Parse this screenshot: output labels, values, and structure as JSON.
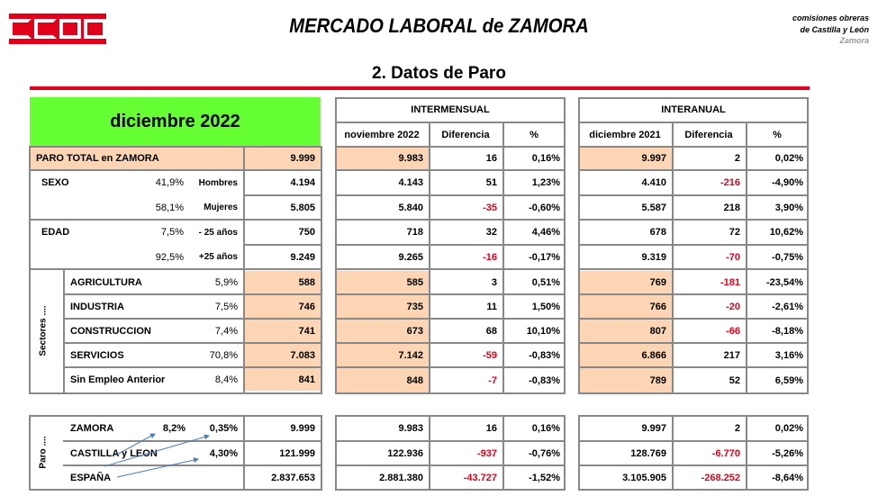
{
  "header": {
    "logo": "CCOO",
    "title": "MERCADO LABORAL de ZAMORA",
    "org_line1": "comisiones obreras",
    "org_line2": "de Castilla y León",
    "org_line3": "Zamora",
    "section": "2.   Datos de Paro"
  },
  "left": {
    "month": "diciembre 2022",
    "paro_label": "PARO TOTAL en ZAMORA",
    "paro_value": "9.999",
    "sexo_label": "SEXO",
    "hombres_pct": "41,9%",
    "hombres_label": "Hombres",
    "hombres_value": "4.194",
    "mujeres_pct": "58,1%",
    "mujeres_label": "Mujeres",
    "mujeres_value": "5.805",
    "edad_label": "EDAD",
    "menos25_pct": "7,5%",
    "menos25_label": "- 25 años",
    "menos25_value": "750",
    "mas25_pct": "92,5%",
    "mas25_label": "+25 años",
    "mas25_value": "9.249",
    "sectores_label": "Sectores ....",
    "sectors": [
      {
        "label": "AGRICULTURA",
        "pct": "5,9%",
        "value": "588"
      },
      {
        "label": "INDUSTRIA",
        "pct": "7,5%",
        "value": "746"
      },
      {
        "label": "CONSTRUCCION",
        "pct": "7,4%",
        "value": "741"
      },
      {
        "label": "SERVICIOS",
        "pct": "70,8%",
        "value": "7.083"
      },
      {
        "label": "Sin Empleo Anterior",
        "pct": "8,4%",
        "value": "841"
      }
    ],
    "paro_group_label": "Paro ....",
    "zamora_label": "ZAMORA",
    "zamora_pct1": "8,2%",
    "zamora_pct2": "0,35%",
    "zamora_value": "9.999",
    "cyl_label": "CASTILLA y LEON",
    "cyl_pct": "4,30%",
    "cyl_value": "121.999",
    "esp_label": "ESPAÑA",
    "esp_value": "2.837.653"
  },
  "intermensual": {
    "title": "INTERMENSUAL",
    "h1": "noviembre 2022",
    "h2": "Diferencia",
    "h3": "%",
    "rows": [
      [
        "9.983",
        "16",
        "0,16%"
      ],
      [
        "4.143",
        "51",
        "1,23%"
      ],
      [
        "5.840",
        "-35",
        "-0,60%"
      ],
      [
        "718",
        "32",
        "4,46%"
      ],
      [
        "9.265",
        "-16",
        "-0,17%"
      ],
      [
        "585",
        "3",
        "0,51%"
      ],
      [
        "735",
        "11",
        "1,50%"
      ],
      [
        "673",
        "68",
        "10,10%"
      ],
      [
        "7.142",
        "-59",
        "-0,83%"
      ],
      [
        "848",
        "-7",
        "-0,83%"
      ]
    ],
    "bottom": [
      [
        "9.983",
        "16",
        "0,16%"
      ],
      [
        "122.936",
        "-937",
        "-0,76%"
      ],
      [
        "2.881.380",
        "-43.727",
        "-1,52%"
      ]
    ]
  },
  "interanual": {
    "title": "INTERANUAL",
    "h1": "diciembre 2021",
    "h2": "Diferencia",
    "h3": "%",
    "rows": [
      [
        "9.997",
        "2",
        "0,02%"
      ],
      [
        "4.410",
        "-216",
        "-4,90%"
      ],
      [
        "5.587",
        "218",
        "3,90%"
      ],
      [
        "678",
        "72",
        "10,62%"
      ],
      [
        "9.319",
        "-70",
        "-0,75%"
      ],
      [
        "769",
        "-181",
        "-23,54%"
      ],
      [
        "766",
        "-20",
        "-2,61%"
      ],
      [
        "807",
        "-66",
        "-8,18%"
      ],
      [
        "6.866",
        "217",
        "3,16%"
      ],
      [
        "789",
        "52",
        "6,59%"
      ]
    ],
    "bottom": [
      [
        "9.997",
        "2",
        "0,02%"
      ],
      [
        "128.769",
        "-6.770",
        "-5,26%"
      ],
      [
        "3.105.905",
        "-268.252",
        "-8,64%"
      ]
    ]
  },
  "colors": {
    "brand_red": "#e3001b",
    "green": "#66ff33",
    "peach": "#fcd5b4",
    "negative": "#e3001b"
  }
}
